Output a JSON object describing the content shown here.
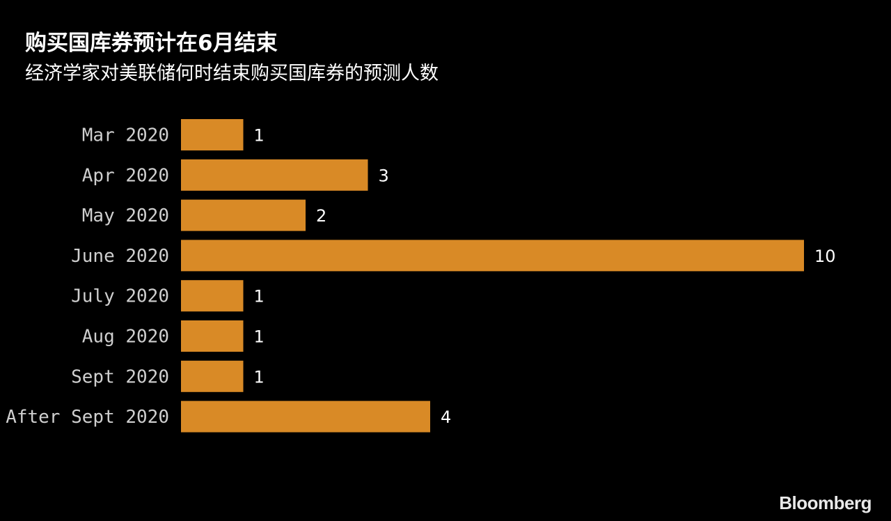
{
  "title": "购买国库券预计在6月结束",
  "subtitle": "经济学家对美联储何时结束购买国库券的预测人数",
  "brand": "Bloomberg",
  "colors": {
    "background": "#000000",
    "bar": "#d98a26",
    "text": "#ffffff",
    "category_text": "#cfcfcf"
  },
  "chart_data": {
    "type": "bar",
    "orientation": "horizontal",
    "categories": [
      "Mar 2020",
      "Apr 2020",
      "May 2020",
      "June 2020",
      "July 2020",
      "Aug 2020",
      "Sept 2020",
      "After Sept 2020"
    ],
    "values": [
      1,
      3,
      2,
      10,
      1,
      1,
      1,
      4
    ],
    "title": "购买国库券预计在6月结束",
    "subtitle": "经济学家对美联储何时结束购买国库券的预测人数",
    "xlim": [
      0,
      10
    ],
    "grid": false,
    "data_labels": true
  }
}
